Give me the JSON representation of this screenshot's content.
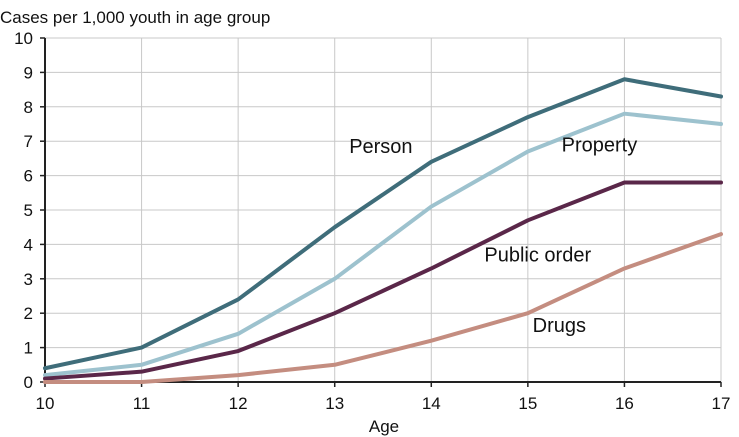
{
  "chart_data": {
    "type": "line",
    "title": "",
    "ylabel": "Cases per 1,000 youth in age group",
    "xlabel": "Age",
    "x": [
      10,
      11,
      12,
      13,
      14,
      15,
      16,
      17
    ],
    "xlim": [
      10,
      17
    ],
    "ylim": [
      0,
      10
    ],
    "yticks": [
      0,
      1,
      2,
      3,
      4,
      5,
      6,
      7,
      8,
      9,
      10
    ],
    "grid": true,
    "legend": "inline labels",
    "series": [
      {
        "name": "Person",
        "color": "#3f6d7a",
        "values": [
          0.4,
          1.0,
          2.4,
          4.5,
          6.4,
          7.7,
          8.8,
          8.3
        ]
      },
      {
        "name": "Property",
        "color": "#9dc2ce",
        "values": [
          0.2,
          0.5,
          1.4,
          3.0,
          5.1,
          6.7,
          7.8,
          7.5
        ]
      },
      {
        "name": "Public order",
        "color": "#5a2749",
        "values": [
          0.1,
          0.3,
          0.9,
          2.0,
          3.3,
          4.7,
          5.8,
          5.8
        ]
      },
      {
        "name": "Drugs",
        "color": "#c48d80",
        "values": [
          0.0,
          0.0,
          0.2,
          0.5,
          1.2,
          2.0,
          3.3,
          4.3
        ]
      }
    ]
  }
}
